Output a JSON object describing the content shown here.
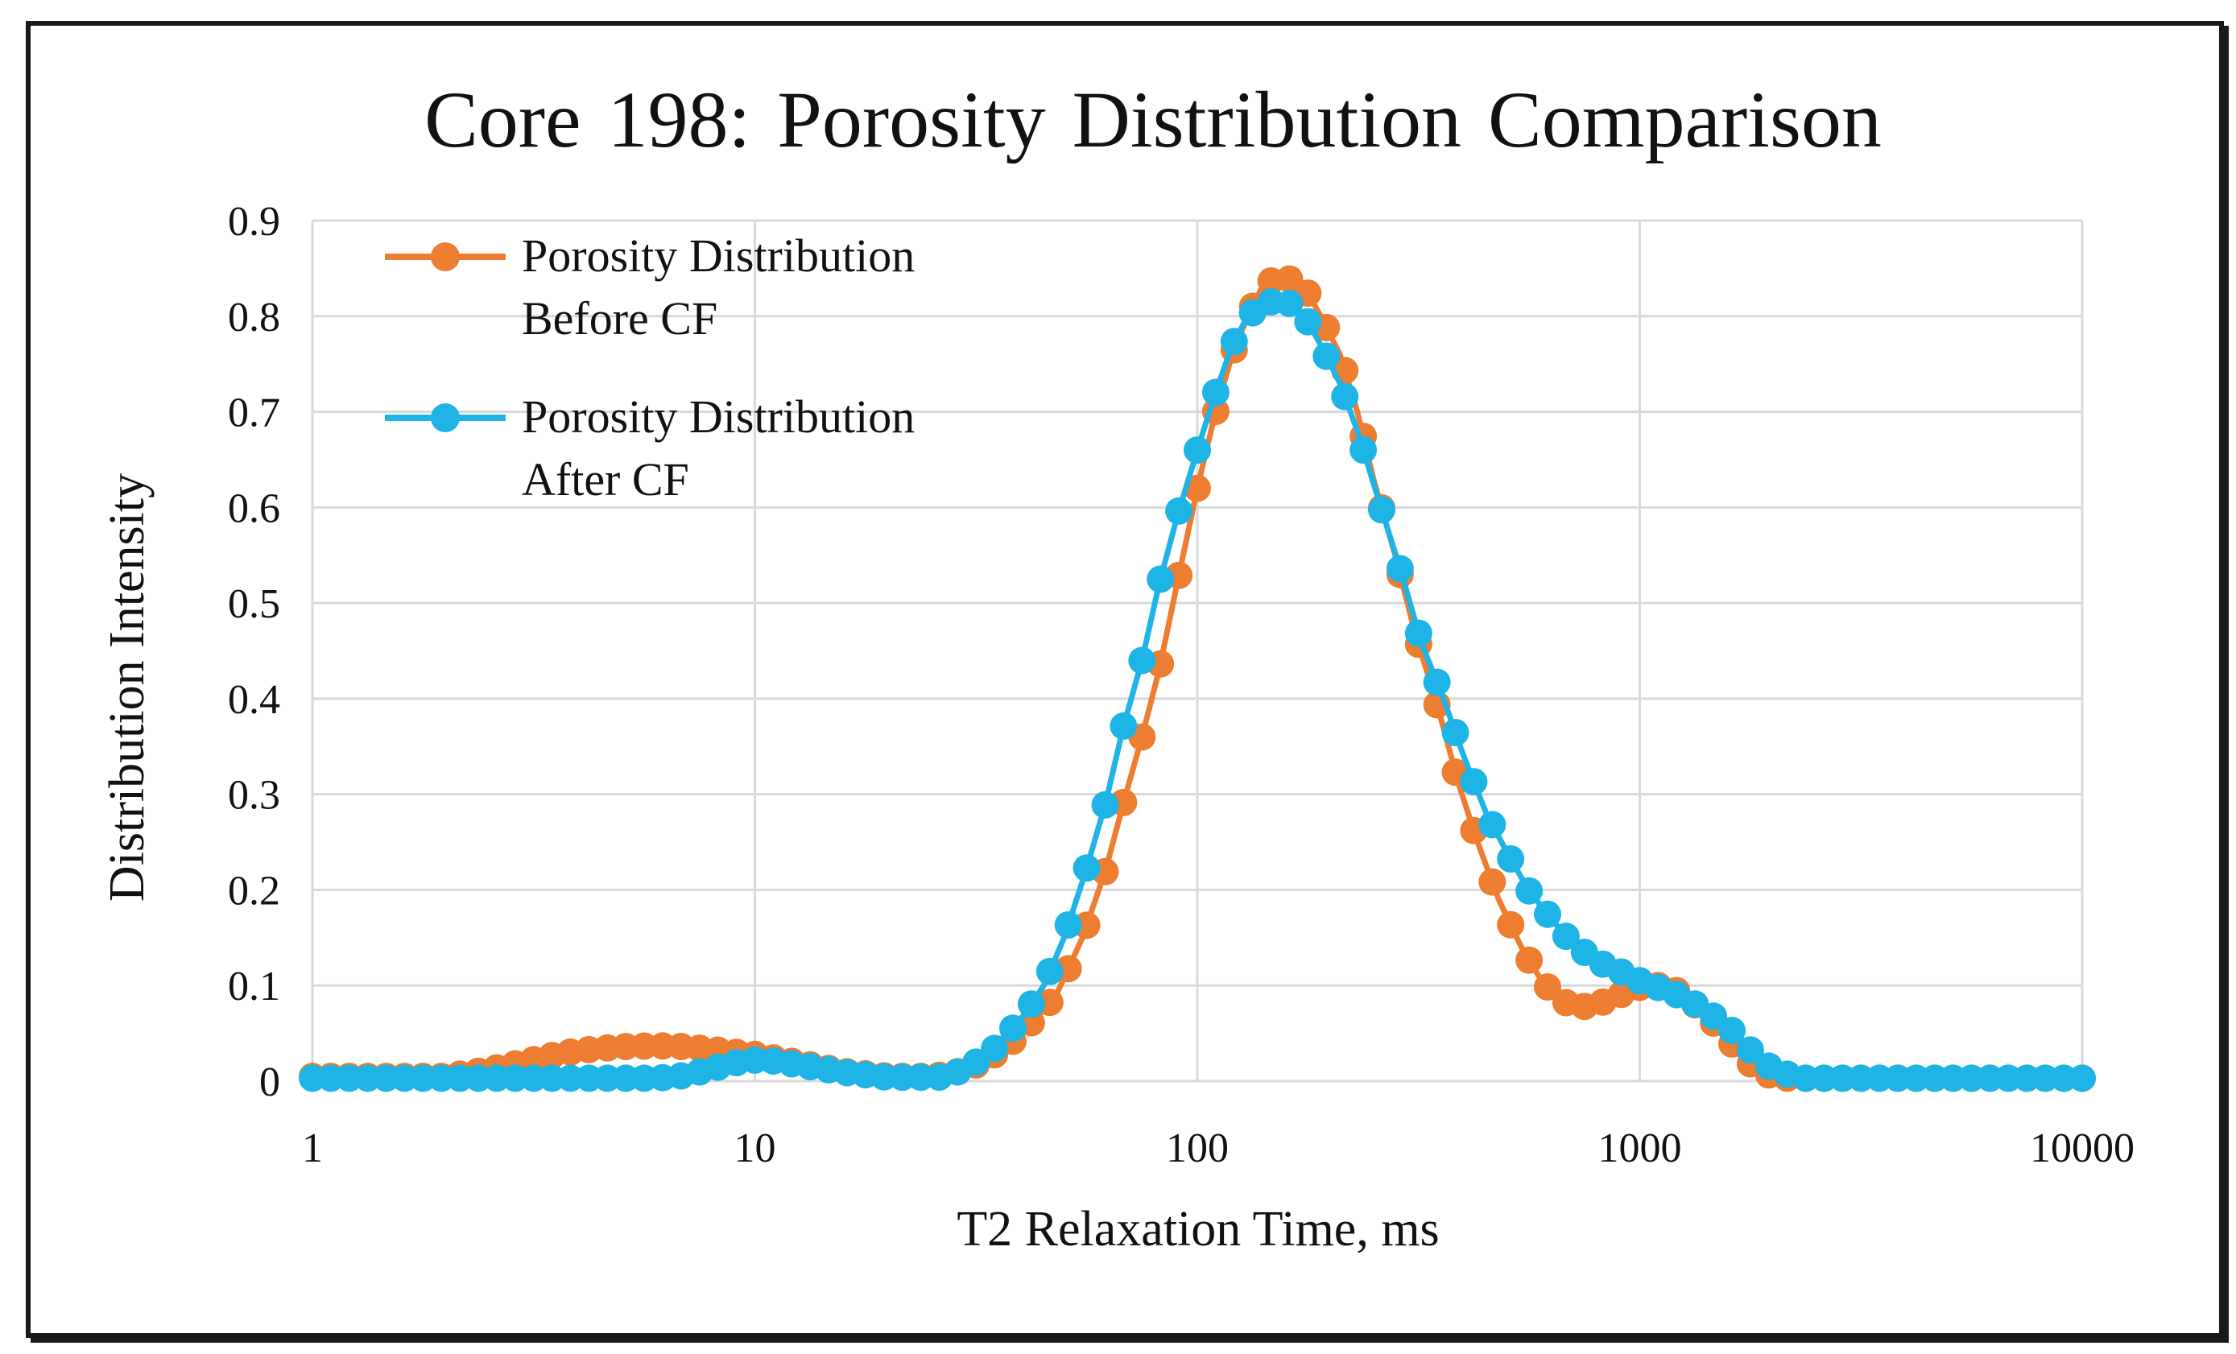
{
  "chart_data": {
    "type": "line",
    "title": "Core 198: Porosity Distribution Comparison",
    "xlabel": "T2 Relaxation Time, ms",
    "ylabel": "Distribution Intensity",
    "xscale": "log",
    "xlim": [
      1,
      10000
    ],
    "ylim": [
      0,
      0.9
    ],
    "xticks": [
      "1",
      "10",
      "100",
      "1000",
      "10000"
    ],
    "yticks": [
      "0",
      "0.1",
      "0.2",
      "0.3",
      "0.4",
      "0.5",
      "0.6",
      "0.7",
      "0.8",
      "0.9"
    ],
    "grid": true,
    "legend_position": "top-left",
    "series": [
      {
        "name_line1": "Porosity Distribution",
        "name_line2": "Before CF",
        "color": "#ED7D31",
        "points": [
          [
            1.0,
            0.005
          ],
          [
            2.0,
            0.005
          ],
          [
            2.5,
            0.012
          ],
          [
            3.0,
            0.02
          ],
          [
            3.5,
            0.027
          ],
          [
            4.0,
            0.032
          ],
          [
            5.0,
            0.036
          ],
          [
            6.0,
            0.037
          ],
          [
            7.0,
            0.036
          ],
          [
            8.0,
            0.033
          ],
          [
            10.0,
            0.028
          ],
          [
            13.0,
            0.018
          ],
          [
            16.0,
            0.01
          ],
          [
            20.0,
            0.005
          ],
          [
            25.0,
            0.005
          ],
          [
            28.0,
            0.008
          ],
          [
            33.0,
            0.02
          ],
          [
            38.0,
            0.04
          ],
          [
            43.0,
            0.065
          ],
          [
            48.0,
            0.09
          ],
          [
            55.0,
            0.15
          ],
          [
            62.0,
            0.22
          ],
          [
            68.0,
            0.29
          ],
          [
            75.0,
            0.36
          ],
          [
            82.0,
            0.43
          ],
          [
            90.0,
            0.52
          ],
          [
            100.0,
            0.62
          ],
          [
            110.0,
            0.7
          ],
          [
            120.0,
            0.76
          ],
          [
            130.0,
            0.8
          ],
          [
            140.0,
            0.83
          ],
          [
            150.0,
            0.84
          ],
          [
            160.0,
            0.84
          ],
          [
            175.0,
            0.83
          ],
          [
            190.0,
            0.8
          ],
          [
            210.0,
            0.76
          ],
          [
            230.0,
            0.7
          ],
          [
            250.0,
            0.63
          ],
          [
            280.0,
            0.55
          ],
          [
            310.0,
            0.47
          ],
          [
            350.0,
            0.39
          ],
          [
            390.0,
            0.31
          ],
          [
            430.0,
            0.25
          ],
          [
            480.0,
            0.19
          ],
          [
            540.0,
            0.14
          ],
          [
            600.0,
            0.105
          ],
          [
            660.0,
            0.085
          ],
          [
            720.0,
            0.077
          ],
          [
            800.0,
            0.08
          ],
          [
            900.0,
            0.09
          ],
          [
            1000.0,
            0.098
          ],
          [
            1100.0,
            0.1
          ],
          [
            1200.0,
            0.096
          ],
          [
            1300.0,
            0.085
          ],
          [
            1400.0,
            0.07
          ],
          [
            1550.0,
            0.05
          ],
          [
            1700.0,
            0.025
          ],
          [
            1900.0,
            0.008
          ],
          [
            2100.0,
            0.003
          ],
          [
            2500.0,
            0.003
          ],
          [
            10000.0,
            0.003
          ]
        ]
      },
      {
        "name_line1": "Porosity Distribution",
        "name_line2": "After CF",
        "color": "#1EB4E6",
        "points": [
          [
            1.0,
            0.003
          ],
          [
            4.0,
            0.003
          ],
          [
            6.0,
            0.003
          ],
          [
            7.0,
            0.006
          ],
          [
            8.0,
            0.013
          ],
          [
            9.0,
            0.019
          ],
          [
            10.0,
            0.022
          ],
          [
            11.0,
            0.021
          ],
          [
            13.0,
            0.016
          ],
          [
            16.0,
            0.009
          ],
          [
            20.0,
            0.004
          ],
          [
            26.0,
            0.004
          ],
          [
            30.0,
            0.012
          ],
          [
            35.0,
            0.035
          ],
          [
            40.0,
            0.065
          ],
          [
            45.0,
            0.1
          ],
          [
            50.0,
            0.15
          ],
          [
            56.0,
            0.22
          ],
          [
            62.0,
            0.29
          ],
          [
            68.0,
            0.37
          ],
          [
            75.0,
            0.44
          ],
          [
            82.0,
            0.52
          ],
          [
            90.0,
            0.59
          ],
          [
            100.0,
            0.66
          ],
          [
            110.0,
            0.72
          ],
          [
            120.0,
            0.77
          ],
          [
            130.0,
            0.8
          ],
          [
            145.0,
            0.815
          ],
          [
            160.0,
            0.815
          ],
          [
            175.0,
            0.8
          ],
          [
            190.0,
            0.77
          ],
          [
            210.0,
            0.73
          ],
          [
            230.0,
            0.68
          ],
          [
            260.0,
            0.6
          ],
          [
            290.0,
            0.53
          ],
          [
            320.0,
            0.46
          ],
          [
            360.0,
            0.4
          ],
          [
            400.0,
            0.34
          ],
          [
            450.0,
            0.28
          ],
          [
            500.0,
            0.24
          ],
          [
            560.0,
            0.2
          ],
          [
            630.0,
            0.17
          ],
          [
            700.0,
            0.145
          ],
          [
            800.0,
            0.125
          ],
          [
            900.0,
            0.115
          ],
          [
            1000.0,
            0.105
          ],
          [
            1100.0,
            0.098
          ],
          [
            1250.0,
            0.088
          ],
          [
            1400.0,
            0.075
          ],
          [
            1600.0,
            0.055
          ],
          [
            1800.0,
            0.03
          ],
          [
            2000.0,
            0.012
          ],
          [
            2300.0,
            0.003
          ],
          [
            10000.0,
            0.003
          ]
        ]
      }
    ]
  }
}
